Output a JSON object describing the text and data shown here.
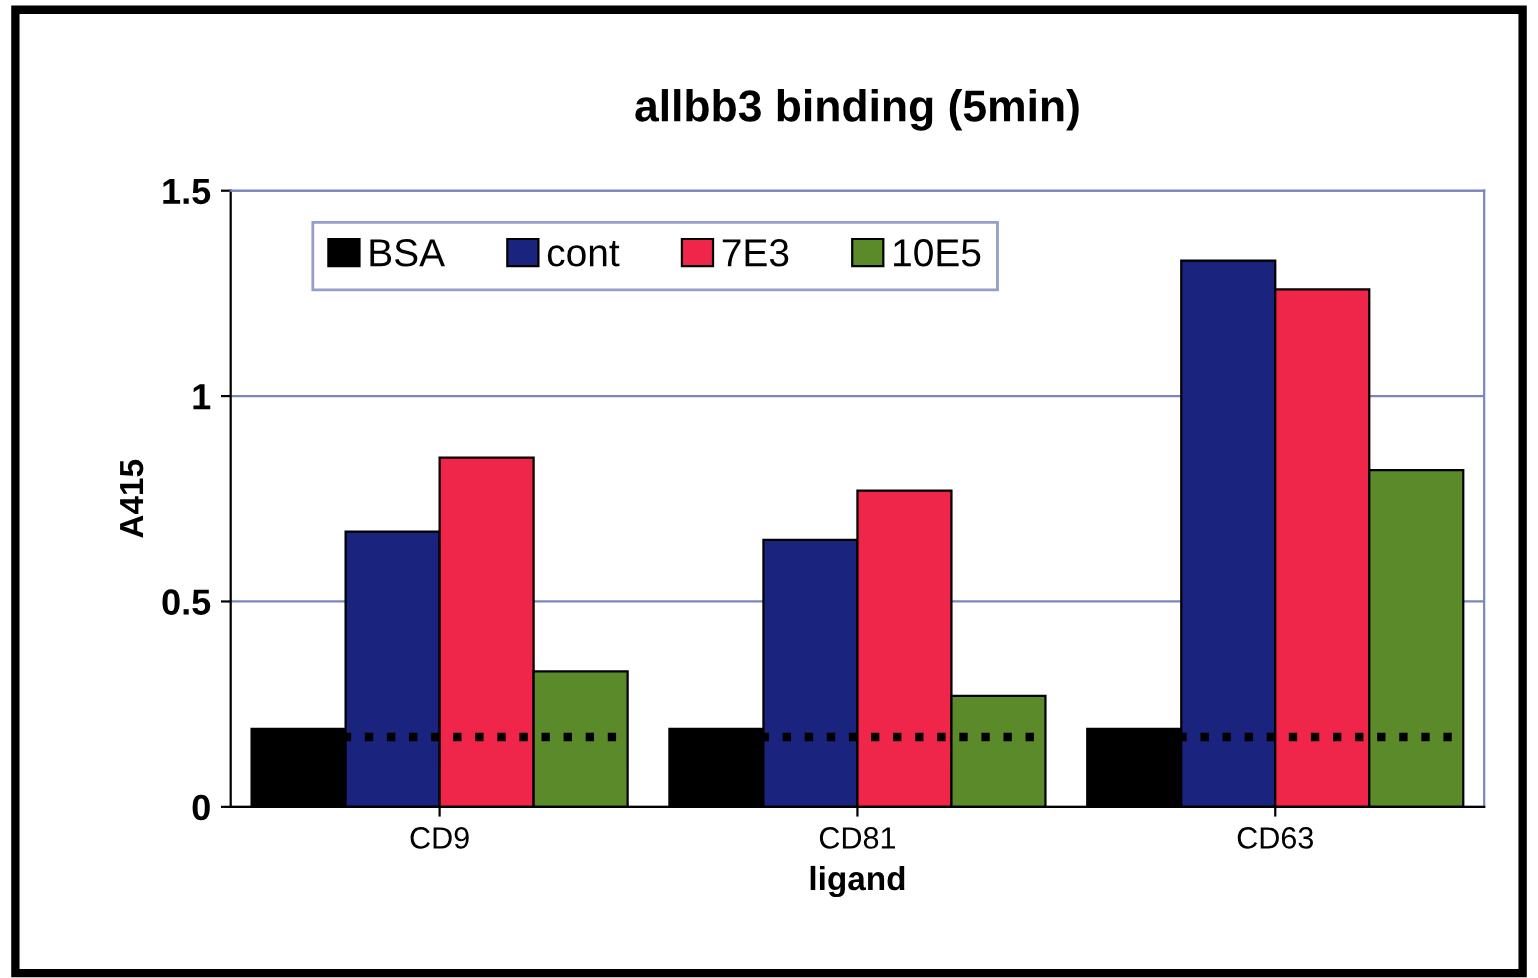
{
  "chart_data": {
    "type": "bar",
    "title": "allbb3 binding (5min)",
    "xlabel": "ligand",
    "ylabel": "A415",
    "categories": [
      "CD9",
      "CD81",
      "CD63"
    ],
    "series": [
      {
        "name": "BSA",
        "color": "#000000",
        "values": [
          0.19,
          0.19,
          0.19
        ]
      },
      {
        "name": "cont",
        "color": "#1a237e",
        "values": [
          0.67,
          0.65,
          1.33
        ]
      },
      {
        "name": "7E3",
        "color": "#f0254a",
        "values": [
          0.85,
          0.77,
          1.26
        ]
      },
      {
        "name": "10E5",
        "color": "#5a8a2a",
        "values": [
          0.33,
          0.27,
          0.82
        ]
      }
    ],
    "ref_lines": [
      {
        "axis": "y",
        "value": 0.17,
        "color": "#000000",
        "line_style": "dotted"
      }
    ],
    "ylim": [
      0,
      1.5
    ],
    "yticks": [
      0,
      0.5,
      1,
      1.5
    ],
    "grid": "y",
    "legend": "top left"
  }
}
